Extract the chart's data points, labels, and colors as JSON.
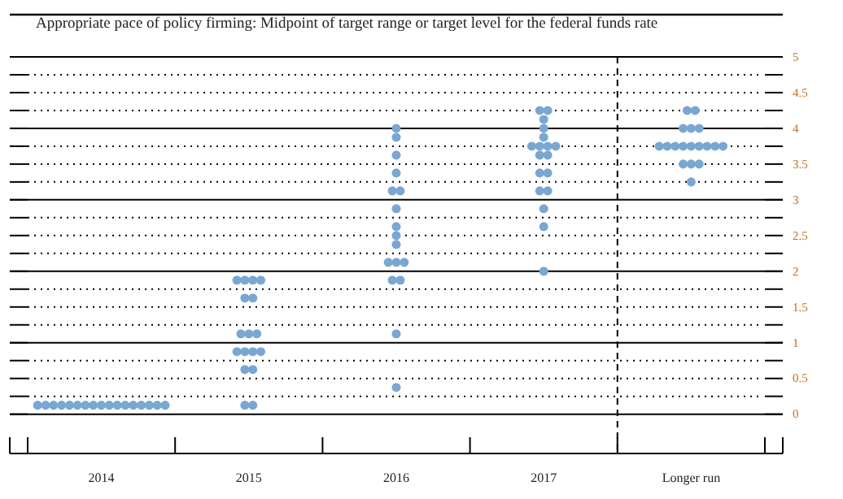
{
  "chart_data": {
    "type": "scatter",
    "title": "Appropriate pace of policy firming: Midpoint of target range or target level for the federal funds rate",
    "categories": [
      "2014",
      "2015",
      "2016",
      "2017",
      "Longer run"
    ],
    "series": [
      {
        "color": "#7aa6d2",
        "values": [
          0.125,
          0.125,
          0.375,
          2.0,
          3.25
        ]
      },
      {
        "color": "#7aa6d2",
        "values": [
          0.125,
          0.125,
          1.125,
          2.625,
          3.5
        ]
      },
      {
        "color": "#7aa6d2",
        "values": [
          0.125,
          0.625,
          1.875,
          2.875,
          3.5
        ]
      },
      {
        "color": "#7aa6d2",
        "values": [
          0.125,
          0.625,
          1.875,
          3.125,
          3.5
        ]
      },
      {
        "color": "#7aa6d2",
        "values": [
          0.125,
          0.875,
          2.125,
          3.125,
          3.75
        ]
      },
      {
        "color": "#7aa6d2",
        "values": [
          0.125,
          0.875,
          2.125,
          3.375,
          3.75
        ]
      },
      {
        "color": "#7aa6d2",
        "values": [
          0.125,
          0.875,
          2.125,
          3.375,
          3.75
        ]
      },
      {
        "color": "#7aa6d2",
        "values": [
          0.125,
          0.875,
          2.375,
          3.625,
          3.75
        ]
      },
      {
        "color": "#7aa6d2",
        "values": [
          0.125,
          1.125,
          2.5,
          3.625,
          3.75
        ]
      },
      {
        "color": "#7aa6d2",
        "values": [
          0.125,
          1.125,
          2.625,
          3.75,
          3.75
        ]
      },
      {
        "color": "#7aa6d2",
        "values": [
          0.125,
          1.125,
          2.875,
          3.75,
          3.75
        ]
      },
      {
        "color": "#7aa6d2",
        "values": [
          0.125,
          1.625,
          3.125,
          3.75,
          3.75
        ]
      },
      {
        "color": "#7aa6d2",
        "values": [
          0.125,
          1.625,
          3.125,
          3.75,
          3.75
        ]
      },
      {
        "color": "#7aa6d2",
        "values": [
          0.125,
          1.875,
          3.375,
          3.875,
          4.0
        ]
      },
      {
        "color": "#7aa6d2",
        "values": [
          0.125,
          1.875,
          3.625,
          4.0,
          4.0
        ]
      },
      {
        "color": "#7aa6d2",
        "values": [
          0.125,
          1.875,
          3.875,
          4.125,
          4.0
        ]
      },
      {
        "color": "#7aa6d2",
        "values": [
          0.125,
          1.875,
          4.0,
          4.25,
          4.25
        ]
      },
      {
        "color": "#7aa6d2",
        "values": [
          null,
          null,
          null,
          4.25,
          4.25
        ]
      }
    ],
    "ylim": [
      -0.55,
      5
    ],
    "yticks": [
      0,
      {
        "value": 0.25,
        "label": null
      },
      0.5,
      {
        "value": 0.75,
        "label": null
      },
      1,
      {
        "value": 1.25,
        "label": null
      },
      1.5,
      {
        "value": 1.75,
        "label": null
      },
      2,
      {
        "value": 2.25,
        "label": null
      },
      2.5,
      {
        "value": 2.75,
        "label": null
      },
      3,
      {
        "value": 3.25,
        "label": null
      },
      3.5,
      {
        "value": 3.75,
        "label": null
      },
      4,
      {
        "value": 4.25,
        "label": null
      },
      4.5,
      {
        "value": 4.75,
        "label": null
      },
      5
    ],
    "grid": "y",
    "marker": "circle"
  }
}
